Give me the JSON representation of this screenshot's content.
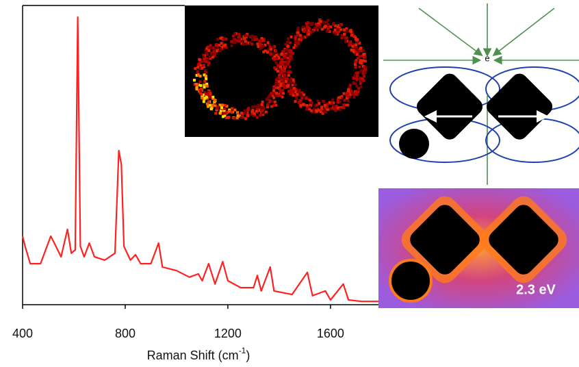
{
  "chart_data": {
    "type": "line",
    "x_label": [
      "Raman Shift (cm",
      "-1",
      ")"
    ],
    "x": [
      400,
      410,
      430,
      470,
      510,
      530,
      550,
      575,
      590,
      605,
      615,
      625,
      640,
      660,
      680,
      720,
      760,
      775,
      785,
      795,
      820,
      840,
      860,
      900,
      930,
      945,
      1000,
      1050,
      1085,
      1100,
      1125,
      1150,
      1180,
      1200,
      1250,
      1300,
      1315,
      1330,
      1365,
      1380,
      1450,
      1510,
      1530,
      1580,
      1600,
      1650,
      1670,
      1720,
      1787
    ],
    "values": [
      22.9,
      19.5,
      13.7,
      13.7,
      22.9,
      19.5,
      16.0,
      25.2,
      17.2,
      18.3,
      96.1,
      19.5,
      16.0,
      20.6,
      16.0,
      14.9,
      17.2,
      51.5,
      46.9,
      19.5,
      14.9,
      16.7,
      13.7,
      13.7,
      20.6,
      12.6,
      11.4,
      9.2,
      10.3,
      8.0,
      13.7,
      6.9,
      14.4,
      8.0,
      5.7,
      5.7,
      9.8,
      4.6,
      12.6,
      4.6,
      3.4,
      10.8,
      3.0,
      4.6,
      1.6,
      6.9,
      1.6,
      1.1,
      1.1
    ],
    "color": "#ff2020",
    "xlim": [
      400,
      1787
    ],
    "xticks": [
      400,
      800,
      1200,
      1600
    ],
    "ylim": [
      0,
      100
    ],
    "annotations": {
      "electron": "e",
      "energy": "2.3 eV"
    }
  }
}
